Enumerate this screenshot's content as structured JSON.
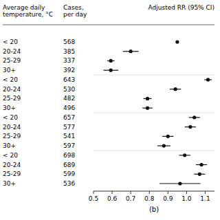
{
  "chart_data": {
    "type": "forest",
    "headers": [
      "Average daily\ntemperature, °C",
      "Cases,\nper day",
      "Adjusted RR (95% CI)"
    ],
    "xlabel": "(b)",
    "categories": [
      "< 20",
      "20-24",
      "25-29",
      "30+",
      "< 20",
      "20-24",
      "25-29",
      "30+",
      "< 20",
      "20-24",
      "25-29",
      "30+",
      "< 20",
      "20-24",
      "25-29",
      "30+"
    ],
    "cases": [
      568,
      385,
      337,
      392,
      643,
      530,
      482,
      496,
      657,
      577,
      541,
      597,
      698,
      689,
      599,
      536
    ],
    "values": [
      0.95,
      0.7,
      0.593,
      0.593,
      1.115,
      0.94,
      0.79,
      0.79,
      1.042,
      1.02,
      0.9,
      0.878,
      0.99,
      1.08,
      1.07,
      0.965
    ],
    "lo": [
      0.95,
      0.658,
      0.573,
      0.553,
      1.095,
      0.91,
      0.768,
      0.763,
      1.012,
      0.99,
      0.87,
      0.843,
      0.96,
      1.05,
      1.04,
      0.855
    ],
    "hi": [
      0.95,
      0.742,
      0.613,
      0.633,
      1.135,
      0.97,
      0.812,
      0.817,
      1.072,
      1.05,
      0.93,
      0.913,
      1.02,
      1.11,
      1.1,
      1.075
    ],
    "color": "#111111",
    "xlim": [
      0.5,
      1.15
    ],
    "xticks": [
      0.5,
      0.6,
      0.7,
      0.8,
      0.9,
      {
        "value": 1.0,
        "label": "1.0"
      },
      1.1
    ]
  }
}
